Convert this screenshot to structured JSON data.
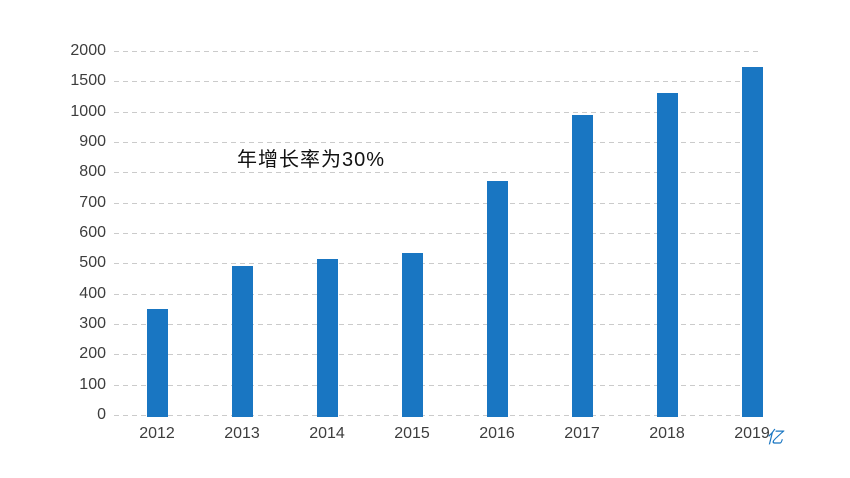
{
  "chart_data": {
    "type": "bar",
    "title": "",
    "categories": [
      "2012",
      "2013",
      "2014",
      "2015",
      "2016",
      "2017",
      "2018",
      "2019"
    ],
    "values": [
      350,
      490,
      515,
      535,
      770,
      990,
      1300,
      1740
    ],
    "y_ticks": [
      0,
      100,
      200,
      300,
      400,
      500,
      600,
      700,
      800,
      900,
      1000,
      1500,
      2000
    ],
    "y_tick_labels": [
      "0",
      "100",
      "200",
      "300",
      "400",
      "500",
      "600",
      "700",
      "800",
      "900",
      "1000",
      "1500",
      "2000"
    ],
    "axis_scale_hint": "ticks equally spaced in pixels; 100-unit steps up to 1000, then 500-unit steps to 2000",
    "xlabel": "",
    "ylabel": "",
    "unit_label": "亿",
    "annotation": "年增长率为30%",
    "legend": "none",
    "grid": "horizontal dashed",
    "colors": {
      "bar": "#1976C2",
      "gridline": "#cbcbcb",
      "axis_text": "#3d3d3d",
      "annotation_text": "#111111",
      "unit_text": "#1976C2"
    }
  }
}
